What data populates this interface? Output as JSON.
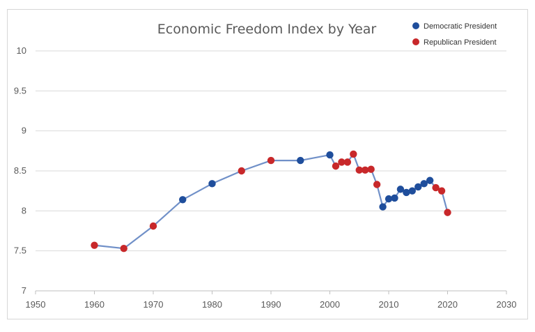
{
  "chart_data": {
    "type": "line",
    "title": "Economic Freedom Index by Year",
    "xlabel": "",
    "ylabel": "",
    "xlim": [
      1950,
      2030
    ],
    "ylim": [
      7,
      10
    ],
    "x_ticks": [
      1950,
      1960,
      1970,
      1980,
      1990,
      2000,
      2010,
      2020,
      2030
    ],
    "y_ticks": [
      7,
      7.5,
      8,
      8.5,
      9,
      9.5,
      10
    ],
    "grid": true,
    "legend_position": "top-right",
    "line_color": "#7090c8",
    "legend": [
      {
        "label": "Democratic President",
        "color": "#1f4e9c"
      },
      {
        "label": "Republican President",
        "color": "#c8282a"
      }
    ],
    "points": [
      {
        "x": 1960,
        "y": 7.57,
        "party": "Republican"
      },
      {
        "x": 1965,
        "y": 7.53,
        "party": "Republican"
      },
      {
        "x": 1970,
        "y": 7.81,
        "party": "Republican"
      },
      {
        "x": 1975,
        "y": 8.14,
        "party": "Democratic"
      },
      {
        "x": 1980,
        "y": 8.34,
        "party": "Democratic"
      },
      {
        "x": 1985,
        "y": 8.5,
        "party": "Republican"
      },
      {
        "x": 1990,
        "y": 8.63,
        "party": "Republican"
      },
      {
        "x": 1995,
        "y": 8.63,
        "party": "Democratic"
      },
      {
        "x": 2000,
        "y": 8.7,
        "party": "Democratic"
      },
      {
        "x": 2001,
        "y": 8.56,
        "party": "Republican"
      },
      {
        "x": 2002,
        "y": 8.61,
        "party": "Republican"
      },
      {
        "x": 2003,
        "y": 8.61,
        "party": "Republican"
      },
      {
        "x": 2004,
        "y": 8.71,
        "party": "Republican"
      },
      {
        "x": 2005,
        "y": 8.51,
        "party": "Republican"
      },
      {
        "x": 2006,
        "y": 8.51,
        "party": "Republican"
      },
      {
        "x": 2007,
        "y": 8.52,
        "party": "Republican"
      },
      {
        "x": 2008,
        "y": 8.33,
        "party": "Republican"
      },
      {
        "x": 2009,
        "y": 8.05,
        "party": "Democratic"
      },
      {
        "x": 2010,
        "y": 8.15,
        "party": "Democratic"
      },
      {
        "x": 2011,
        "y": 8.16,
        "party": "Democratic"
      },
      {
        "x": 2012,
        "y": 8.27,
        "party": "Democratic"
      },
      {
        "x": 2013,
        "y": 8.23,
        "party": "Democratic"
      },
      {
        "x": 2014,
        "y": 8.25,
        "party": "Democratic"
      },
      {
        "x": 2015,
        "y": 8.3,
        "party": "Democratic"
      },
      {
        "x": 2016,
        "y": 8.34,
        "party": "Democratic"
      },
      {
        "x": 2017,
        "y": 8.38,
        "party": "Democratic"
      },
      {
        "x": 2018,
        "y": 8.29,
        "party": "Republican"
      },
      {
        "x": 2019,
        "y": 8.25,
        "party": "Republican"
      },
      {
        "x": 2020,
        "y": 7.98,
        "party": "Republican"
      }
    ]
  }
}
